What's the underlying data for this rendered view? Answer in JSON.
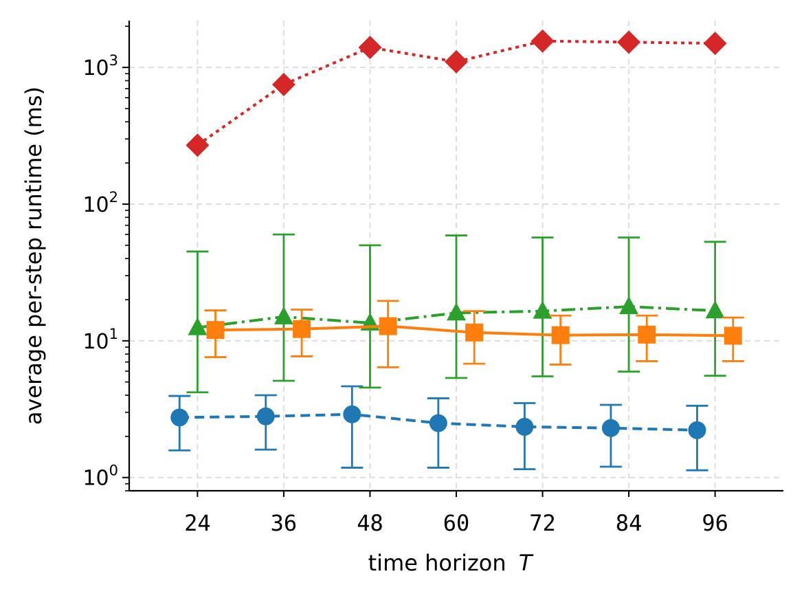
{
  "chart_data": {
    "type": "line",
    "title": "",
    "xlabel": "time horizon",
    "xlabel_var": "T",
    "ylabel": "average per-step runtime (ms)",
    "yscale": "log",
    "ylim": [
      0.8,
      2200
    ],
    "xlim": [
      14.5,
      105.5
    ],
    "grid": true,
    "categories": [
      24,
      36,
      48,
      60,
      72,
      84,
      96
    ],
    "xtick_labels": [
      "24",
      "36",
      "48",
      "60",
      "72",
      "84",
      "96"
    ],
    "ytick_labels": [
      {
        "base": "10",
        "exp": "0",
        "value": 1
      },
      {
        "base": "10",
        "exp": "1",
        "value": 10
      },
      {
        "base": "10",
        "exp": "2",
        "value": 100
      },
      {
        "base": "10",
        "exp": "3",
        "value": 1000
      }
    ],
    "series": [
      {
        "name": "blue",
        "color": "#1f77b4",
        "marker": "circle",
        "linestyle": "dashed",
        "x_offset": -2.5,
        "values": [
          2.75,
          2.8,
          2.9,
          2.5,
          2.35,
          2.3,
          2.22
        ],
        "err_low": [
          1.58,
          1.6,
          1.18,
          1.18,
          1.15,
          1.2,
          1.13
        ],
        "err_high": [
          3.95,
          4.0,
          4.65,
          3.8,
          3.5,
          3.4,
          3.35
        ]
      },
      {
        "name": "green",
        "color": "#2ca02c",
        "marker": "triangle",
        "linestyle": "dashdot",
        "x_offset": 0,
        "values": [
          12.5,
          15.0,
          13.5,
          16.0,
          16.5,
          17.8,
          16.6
        ],
        "err_low": [
          4.2,
          5.1,
          4.55,
          5.35,
          5.5,
          5.95,
          5.55
        ],
        "err_high": [
          45,
          60,
          50,
          59,
          57,
          57,
          53
        ]
      },
      {
        "name": "orange",
        "color": "#ff7f0e",
        "marker": "square",
        "linestyle": "solid",
        "x_offset": 2.5,
        "values": [
          12.0,
          12.2,
          12.8,
          11.5,
          11.0,
          11.1,
          10.9
        ],
        "err_low": [
          7.6,
          7.7,
          6.4,
          6.8,
          6.7,
          7.1,
          7.1
        ],
        "err_high": [
          16.7,
          16.9,
          19.6,
          16.5,
          15.3,
          15.3,
          14.8
        ]
      },
      {
        "name": "red",
        "color": "#d62728",
        "marker": "diamond",
        "linestyle": "dotted",
        "x_offset": 0,
        "values": [
          270,
          750,
          1400,
          1100,
          1560,
          1530,
          1500
        ],
        "err_low": null,
        "err_high": null
      }
    ]
  }
}
